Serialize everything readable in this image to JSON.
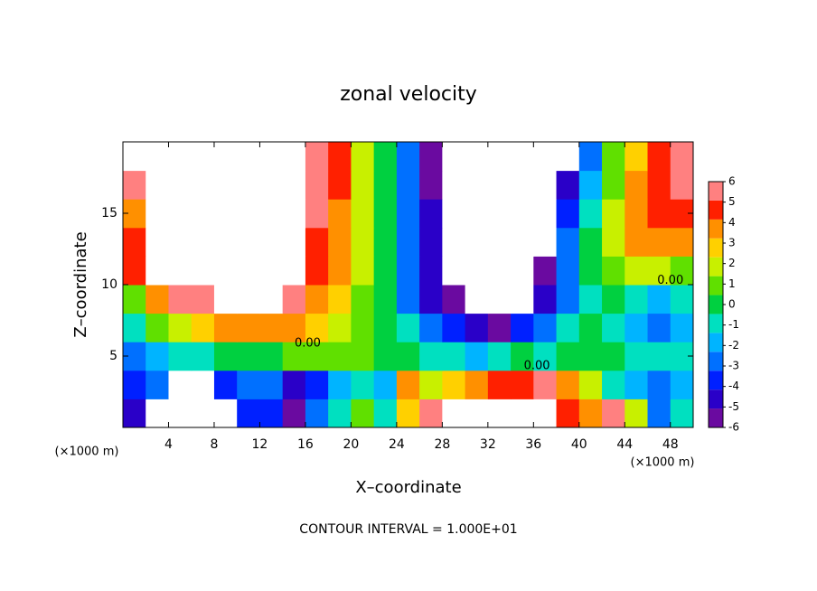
{
  "chart_data": {
    "type": "heatmap",
    "title": "zonal velocity",
    "x_label": "X–coordinate",
    "y_label": "Z–coordinate",
    "x_unit": "(×1000 m)",
    "footer": "CONTOUR INTERVAL = 1.000E+01",
    "x": [
      1,
      3,
      5,
      7,
      9,
      11,
      13,
      15,
      17,
      19,
      21,
      23,
      25,
      27,
      29,
      31,
      33,
      35,
      37,
      39,
      41,
      43,
      45,
      47,
      49
    ],
    "y": [
      1,
      3,
      5,
      7,
      9,
      11,
      13,
      15,
      17,
      19
    ],
    "values": [
      [
        -5,
        -9,
        -9,
        -9,
        -9,
        -4,
        -4,
        -6,
        -3,
        -1,
        1,
        -1,
        3,
        6,
        9,
        9,
        9,
        9,
        8,
        5,
        4,
        6,
        2,
        -3,
        -1
      ],
      [
        -4,
        -3,
        -9,
        -9,
        -4,
        -3,
        -3,
        -5,
        -4,
        -2,
        -1,
        -2,
        4,
        2,
        3,
        4,
        5,
        5,
        6,
        4,
        2,
        -1,
        -2,
        -3,
        -2
      ],
      [
        -3,
        -2,
        -1,
        -1,
        0,
        -0.5,
        0,
        0.5,
        1,
        0.5,
        0.5,
        0,
        0,
        -1,
        -1,
        -2,
        -1,
        -0.5,
        -1,
        -0.5,
        0,
        0,
        -1,
        -1,
        -1
      ],
      [
        -1,
        1,
        2,
        3,
        4,
        4,
        4,
        4,
        3,
        2,
        1,
        0,
        -1,
        -3,
        -4,
        -5,
        -6,
        -4,
        -3,
        -1,
        0,
        -1,
        -2,
        -3,
        -2
      ],
      [
        1,
        4,
        6,
        6,
        7,
        7,
        7,
        6,
        4,
        3,
        1,
        -0.5,
        -3,
        -5,
        -6,
        -9,
        -9,
        -9,
        -5,
        -3,
        -1,
        0,
        -1,
        -2,
        -1
      ],
      [
        5,
        7,
        9,
        9,
        9,
        9,
        9,
        8,
        5,
        3.5,
        1.5,
        -0.5,
        -3,
        -5.5,
        -9,
        -9,
        -9,
        -9,
        -6,
        -3,
        -0.5,
        1,
        2,
        2,
        1
      ],
      [
        5,
        9,
        9,
        9,
        9,
        9,
        9,
        9,
        5,
        4,
        2,
        -0.5,
        -3,
        -5.5,
        -9,
        -9,
        -9,
        -9,
        -8,
        -3,
        -0.5,
        2,
        4,
        4,
        4
      ],
      [
        4,
        9,
        9,
        9,
        9,
        9,
        9,
        9,
        6,
        4,
        2,
        -0.5,
        -3,
        -5.5,
        -9,
        -9,
        -9,
        -9,
        -9,
        -4,
        -1,
        2,
        4,
        5,
        5
      ],
      [
        6,
        9,
        9,
        9,
        9,
        9,
        9,
        9,
        6,
        4.5,
        2,
        -0.5,
        -3,
        -6,
        -9,
        -9,
        -9,
        -9,
        -9,
        -5,
        -2,
        1,
        4,
        5,
        6
      ],
      [
        7,
        9,
        9,
        9,
        9,
        9,
        9,
        9,
        6,
        4.5,
        2,
        -0.5,
        -3,
        -6,
        -9,
        -9,
        -9,
        -9,
        -9,
        -8,
        -3,
        1,
        3,
        5,
        6
      ]
    ],
    "xlim": [
      0,
      50
    ],
    "ylim": [
      0,
      20
    ],
    "xticks": [
      4,
      8,
      12,
      16,
      20,
      24,
      28,
      32,
      36,
      40,
      44,
      48
    ],
    "yticks": [
      5,
      10,
      15
    ],
    "colorbar_ticks": [
      -6,
      -5,
      -4,
      -3,
      -2,
      -1,
      0,
      1,
      2,
      3,
      4,
      5,
      6
    ],
    "colors": [
      "#6a0aa0",
      "#2a00c8",
      "#0020ff",
      "#0070ff",
      "#00b4ff",
      "#00e0c0",
      "#00d040",
      "#60e000",
      "#c8f000",
      "#ffd000",
      "#ff9000",
      "#ff2000",
      "#ff8080"
    ],
    "annotations": [
      {
        "text": "0.00",
        "x": 16.2,
        "y": 5.9
      },
      {
        "text": "0.00",
        "x": 36.3,
        "y": 4.3
      },
      {
        "text": "0.00",
        "x": 48,
        "y": 10.3
      }
    ]
  }
}
